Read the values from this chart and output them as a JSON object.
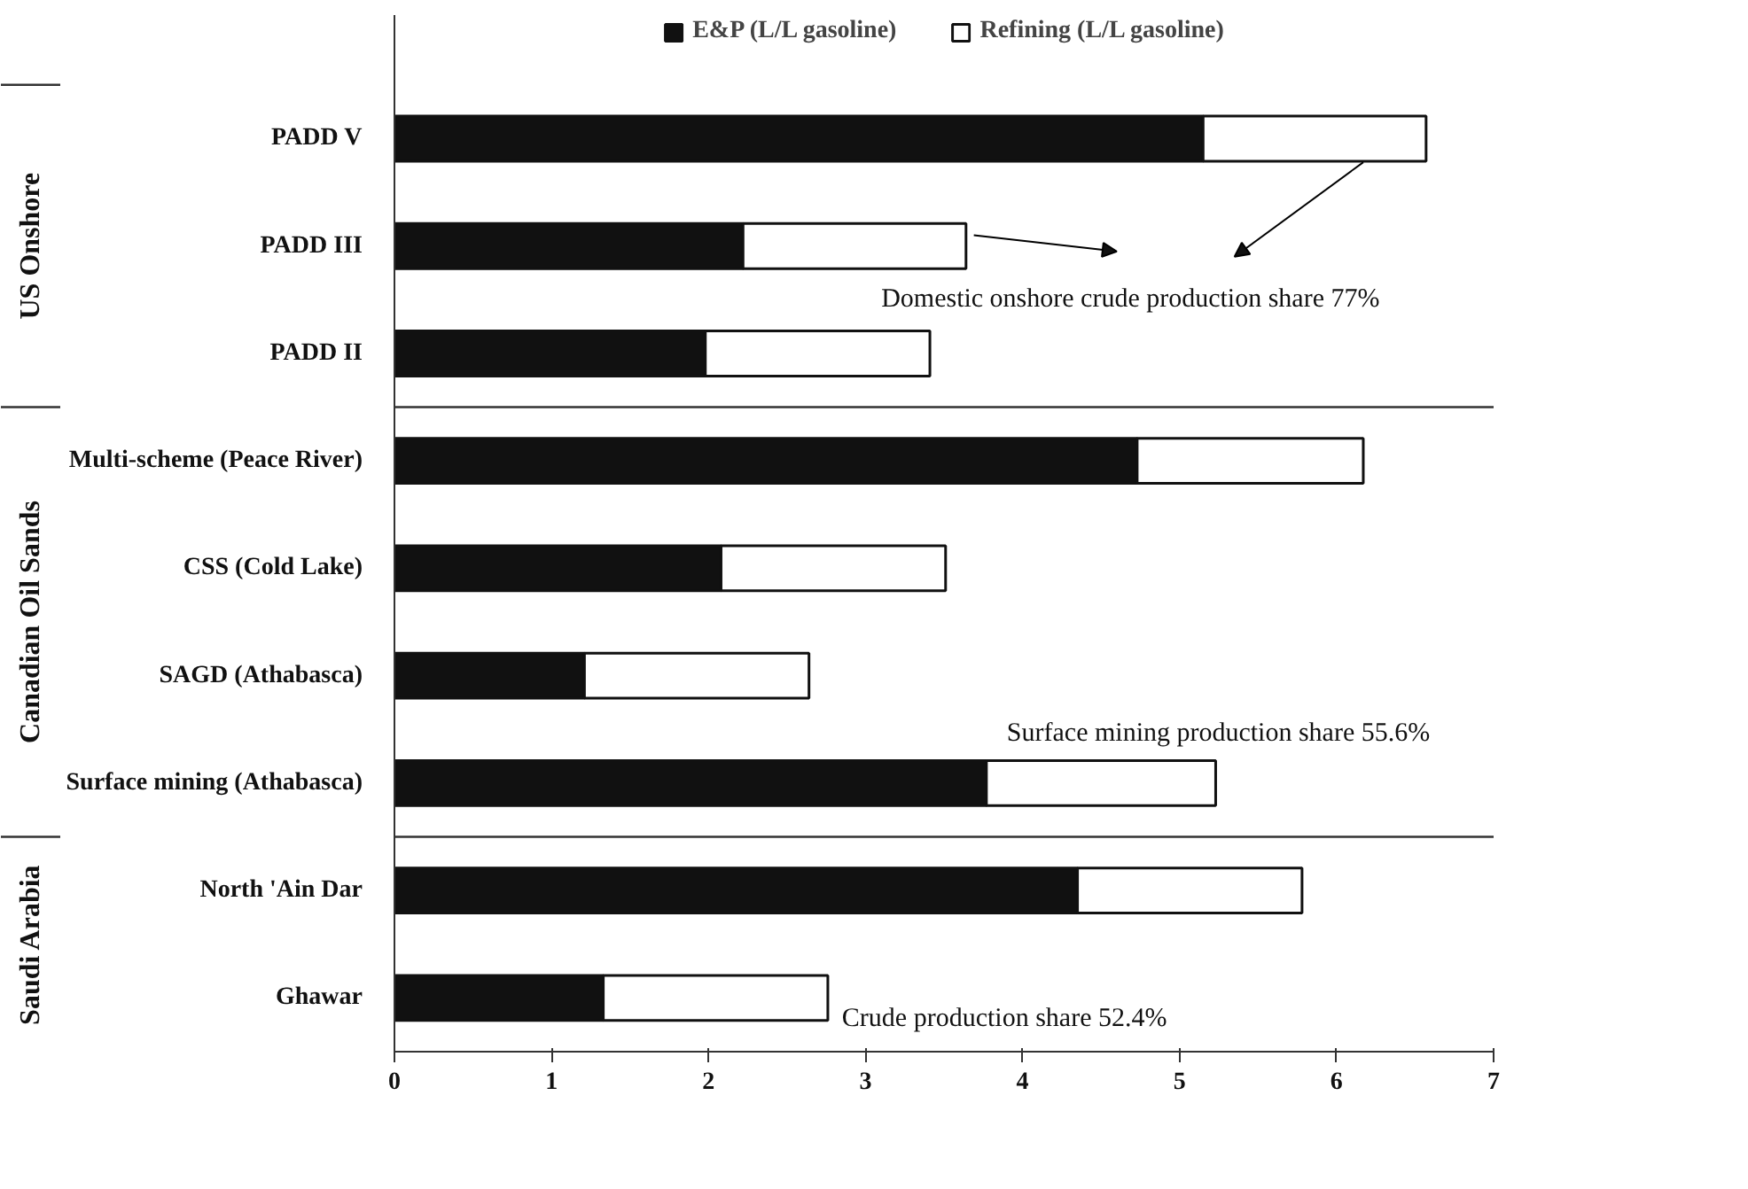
{
  "chart_data": {
    "type": "bar",
    "orientation": "horizontal",
    "stacked": true,
    "categories": [
      "PADD V",
      "PADD III",
      "PADD II",
      "Multi-scheme (Peace River)",
      "CSS (Cold Lake)",
      "SAGD (Athabasca)",
      "Surface mining (Athabasca)",
      "North 'Ain Dar",
      "Ghawar"
    ],
    "series": [
      {
        "name": "E&P (L/L gasoline)",
        "color": "#111111",
        "values": [
          5.15,
          2.22,
          1.98,
          4.73,
          2.08,
          1.21,
          3.77,
          4.35,
          1.33
        ]
      },
      {
        "name": "Refining (L/L gasoline)",
        "color": "#ffffff",
        "values": [
          1.42,
          1.42,
          1.43,
          1.44,
          1.43,
          1.43,
          1.46,
          1.43,
          1.43
        ]
      }
    ],
    "xlim": [
      0,
      7
    ],
    "xticks": [
      0,
      1,
      2,
      3,
      4,
      5,
      6,
      7
    ],
    "grid": false,
    "legend": "top",
    "annotations": [
      "US Onshore",
      "Canadian Oil Sands",
      "Saudi Arabia",
      "Domestic onshore crude production share   77%",
      "Surface mining production share 55.6%",
      "Crude production share 52.4%"
    ]
  }
}
